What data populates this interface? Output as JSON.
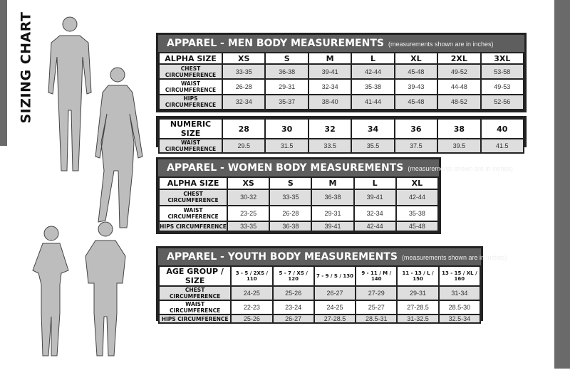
{
  "title": "SIZING CHART",
  "colors": {
    "header_bg": "#5e5e5e",
    "border": "#222222",
    "shaded_row": "#dedede",
    "side_bar": "#6a6a6a"
  },
  "men": {
    "title": "APPAREL - MEN BODY MEASUREMENTS",
    "subtitle": "(measurements shown are in inches)",
    "header": [
      "ALPHA SIZE",
      "XS",
      "S",
      "M",
      "L",
      "XL",
      "2XL",
      "3XL"
    ],
    "rows": [
      [
        "CHEST CIRCUMFERENCE",
        "33-35",
        "36-38",
        "39-41",
        "42-44",
        "45-48",
        "49-52",
        "53-58"
      ],
      [
        "WAIST CIRCUMFERENCE",
        "26-28",
        "29-31",
        "32-34",
        "35-38",
        "39-43",
        "44-48",
        "49-53"
      ],
      [
        "HIPS CIRCUMFERENCE",
        "32-34",
        "35-37",
        "38-40",
        "41-44",
        "45-48",
        "48-52",
        "52-56"
      ]
    ]
  },
  "men_numeric": {
    "header": [
      "NUMERIC SIZE",
      "28",
      "30",
      "32",
      "34",
      "36",
      "38",
      "40"
    ],
    "rows": [
      [
        "WAIST CIRCUMFERENCE",
        "29.5",
        "31.5",
        "33.5",
        "35.5",
        "37.5",
        "39.5",
        "41.5"
      ]
    ]
  },
  "women": {
    "title": "APPAREL - WOMEN BODY MEASUREMENTS",
    "subtitle": "(measurements shown are in inches)",
    "header": [
      "ALPHA SIZE",
      "XS",
      "S",
      "M",
      "L",
      "XL"
    ],
    "rows": [
      [
        "CHEST CIRCUMFERENCE",
        "30-32",
        "33-35",
        "36-38",
        "39-41",
        "42-44"
      ],
      [
        "WAIST CIRCUMFERENCE",
        "23-25",
        "26-28",
        "29-31",
        "32-34",
        "35-38"
      ],
      [
        "HIPS CIRCUMFERENCE",
        "33-35",
        "36-38",
        "39-41",
        "42-44",
        "45-48"
      ]
    ]
  },
  "youth": {
    "title": "APPAREL - YOUTH BODY MEASUREMENTS",
    "subtitle": "(measurements shown are in inches)",
    "header": [
      "AGE GROUP / SIZE",
      "3 - 5  /  2XS / 110",
      "5 - 7  /  XS / 120",
      "7 - 9  /  S / 130",
      "9 - 11  /  M / 140",
      "11 - 13  /  L / 150",
      "13 - 15 /  XL / 160"
    ],
    "rows": [
      [
        "CHEST CIRCUMFERENCE",
        "24-25",
        "25-26",
        "26-27",
        "27-29",
        "29-31",
        "31-34"
      ],
      [
        "WAIST CIRCUMFERENCE",
        "22-23",
        "23-24",
        "24-25",
        "25-27",
        "27-28.5",
        "28.5-30"
      ],
      [
        "HIPS CIRCUMFERENCE",
        "25-26",
        "26-27",
        "27-28.5",
        "28.5-31",
        "31-32.5",
        "32.5-34"
      ]
    ]
  }
}
